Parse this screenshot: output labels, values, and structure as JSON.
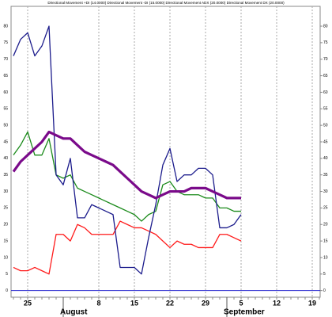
{
  "chart_data": {
    "type": "line",
    "title": "Directional Movement +DI (14.0000) Directional Movement -DI (15.0000) Directional Movement ADX (20.0000) Directional Movement DX (20.0000)",
    "categories": [
      null,
      null,
      "25",
      null,
      null,
      null,
      null,
      null,
      null,
      null,
      null,
      null,
      "8",
      null,
      null,
      null,
      null,
      "15",
      null,
      null,
      null,
      null,
      "22",
      null,
      null,
      null,
      null,
      "29",
      null,
      null,
      null,
      null,
      "5",
      null,
      null,
      null,
      null,
      "12",
      null,
      null,
      null,
      null,
      "19",
      null
    ],
    "month_labels": [
      null,
      null,
      null,
      null,
      null,
      null,
      null,
      "August",
      null,
      null,
      null,
      null,
      null,
      null,
      null,
      null,
      null,
      null,
      null,
      null,
      null,
      null,
      null,
      null,
      null,
      null,
      null,
      null,
      null,
      null,
      "September",
      null,
      null,
      null,
      null,
      null,
      null,
      null,
      null,
      null,
      null,
      null,
      null,
      null
    ],
    "series": [
      {
        "color": "#ff1a1a",
        "line_width": 1.3,
        "values": [
          7,
          6,
          6,
          7,
          6,
          5,
          17,
          17,
          15,
          20,
          19,
          17,
          17,
          17,
          17,
          21,
          20,
          19,
          19,
          18,
          17,
          15,
          13,
          15,
          14,
          14,
          13,
          13,
          13,
          17,
          17,
          16,
          15,
          null,
          null,
          null,
          null,
          null,
          null,
          null,
          null,
          null,
          null,
          null
        ]
      },
      {
        "color": "#1a8a1a",
        "line_width": 1.3,
        "values": [
          41,
          44,
          48,
          41,
          41,
          46,
          35,
          34,
          35,
          31,
          30,
          29,
          28,
          27,
          26,
          25,
          24,
          23,
          21,
          23,
          24,
          32,
          33,
          30,
          29,
          29,
          29,
          28,
          28,
          25,
          25,
          24,
          24,
          null,
          null,
          null,
          null,
          null,
          null,
          null,
          null,
          null,
          null,
          null
        ]
      },
      {
        "color": "#1c1c8c",
        "line_width": 1.3,
        "values": [
          71,
          76,
          78,
          71,
          74,
          80,
          35,
          32,
          40,
          22,
          22,
          26,
          25,
          24,
          23,
          7,
          7,
          7,
          5,
          16,
          26,
          38,
          43,
          33,
          35,
          35,
          37,
          37,
          35,
          19,
          19,
          20,
          23,
          null,
          null,
          null,
          null,
          null,
          null,
          null,
          null,
          null,
          null,
          null
        ]
      },
      {
        "color": "#7a0a8a",
        "line_width": 3.2,
        "values": [
          36,
          39,
          41,
          43,
          45,
          48,
          47,
          46,
          46,
          44,
          42,
          41,
          40,
          39,
          38,
          36,
          34,
          32,
          30,
          29,
          28,
          29,
          30,
          30,
          30,
          31,
          31,
          31,
          30,
          29,
          28,
          28,
          28,
          null,
          null,
          null,
          null,
          null,
          null,
          null,
          null,
          null,
          null,
          null
        ]
      }
    ],
    "ylim": [
      -2,
      86
    ],
    "yticks": [
      0,
      5,
      10,
      15,
      20,
      25,
      30,
      35,
      40,
      45,
      50,
      55,
      60,
      65,
      70,
      75,
      80
    ],
    "grid": true
  }
}
